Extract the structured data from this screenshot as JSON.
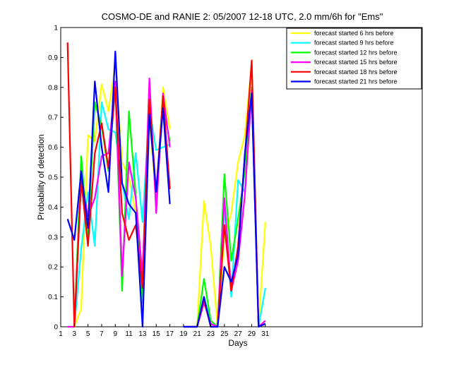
{
  "chart_data": {
    "type": "line",
    "title": "COSMO-DE and RANIE 2: 05/2007 12-18 UTC, 2.0 mm/6h for \"Ems\"",
    "xlabel": "Days",
    "ylabel": "Probability of detection",
    "xlim": [
      1,
      54
    ],
    "ylim": [
      0,
      1
    ],
    "x_ticks": [
      1,
      3,
      5,
      7,
      9,
      11,
      13,
      15,
      17,
      19,
      21,
      23,
      25,
      27,
      29,
      31
    ],
    "y_ticks": [
      0,
      0.1,
      0.2,
      0.3,
      0.4,
      0.5,
      0.6,
      0.7,
      0.8,
      0.9,
      1
    ],
    "y_tick_labels": [
      "0",
      "0.1",
      "0.2",
      "0.3",
      "0.4",
      "0.5",
      "0.6",
      "0.7",
      "0.8",
      "0.9",
      "1"
    ],
    "grid": false,
    "legend_position": "top-right",
    "x": [
      2,
      3,
      4,
      5,
      6,
      7,
      8,
      9,
      10,
      11,
      12,
      13,
      14,
      15,
      16,
      17,
      18,
      19,
      20,
      21,
      22,
      23,
      24,
      25,
      26,
      27,
      28,
      29,
      30,
      31
    ],
    "series": [
      {
        "name": "forecast started 6 hrs before",
        "color": "#ffff00",
        "values": [
          0.0,
          0.0,
          0.06,
          0.64,
          0.62,
          0.81,
          0.72,
          0.88,
          0.55,
          0.5,
          0.38,
          0.06,
          0.7,
          0.42,
          0.8,
          0.66,
          null,
          0.0,
          0.0,
          0.0,
          0.42,
          0.27,
          0.0,
          0.3,
          0.38,
          0.55,
          0.64,
          0.88,
          0.0,
          0.35
        ]
      },
      {
        "name": "forecast started 9 hrs before",
        "color": "#00ffff",
        "values": [
          0.0,
          0.0,
          0.26,
          0.45,
          0.27,
          0.75,
          0.66,
          0.65,
          0.48,
          0.36,
          0.58,
          0.35,
          0.73,
          0.59,
          0.6,
          0.61,
          null,
          0.0,
          0.0,
          0.0,
          0.1,
          0.01,
          0.0,
          0.4,
          0.1,
          0.49,
          0.45,
          0.78,
          0.0,
          0.13
        ]
      },
      {
        "name": "forecast started 12 hrs before",
        "color": "#00ff00",
        "values": [
          0.0,
          0.0,
          0.57,
          0.3,
          0.75,
          0.67,
          0.52,
          0.8,
          0.12,
          0.72,
          0.44,
          0.08,
          0.77,
          0.43,
          0.74,
          0.62,
          null,
          0.0,
          0.0,
          0.0,
          0.16,
          0.02,
          0.0,
          0.51,
          0.22,
          0.36,
          0.52,
          0.8,
          0.0,
          0.02
        ]
      },
      {
        "name": "forecast started 15 hrs before",
        "color": "#ff00ff",
        "values": [
          0.0,
          0.0,
          0.49,
          0.37,
          0.43,
          0.57,
          0.58,
          0.82,
          0.17,
          0.55,
          0.43,
          0.17,
          0.83,
          0.38,
          0.78,
          0.6,
          null,
          0.0,
          0.0,
          0.0,
          0.08,
          0.01,
          0.0,
          0.43,
          0.12,
          0.22,
          0.44,
          0.79,
          0.0,
          0.02
        ]
      },
      {
        "name": "forecast started 18 hrs before",
        "color": "#ff0000",
        "values": [
          0.95,
          0.0,
          0.49,
          0.27,
          0.58,
          0.68,
          0.53,
          0.8,
          0.38,
          0.29,
          0.34,
          0.13,
          0.76,
          0.45,
          0.77,
          0.46,
          null,
          0.0,
          0.0,
          0.0,
          0.09,
          0.0,
          0.0,
          0.34,
          0.12,
          0.27,
          0.57,
          0.89,
          0.0,
          0.01
        ]
      },
      {
        "name": "forecast started 21 hrs before",
        "color": "#0000ff",
        "values": [
          0.36,
          0.29,
          0.52,
          0.33,
          0.82,
          0.6,
          0.45,
          0.92,
          0.48,
          0.41,
          0.38,
          0.0,
          0.71,
          0.45,
          0.73,
          0.41,
          null,
          0.0,
          0.0,
          0.0,
          0.1,
          0.0,
          0.0,
          0.2,
          0.15,
          0.24,
          0.58,
          0.78,
          0.0,
          0.01
        ]
      }
    ]
  }
}
